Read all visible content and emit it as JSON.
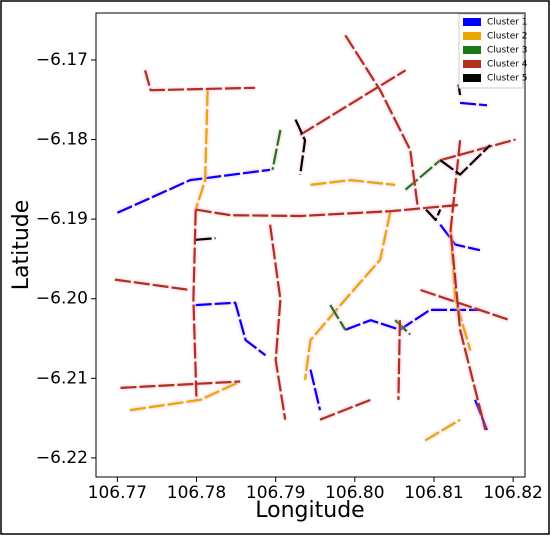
{
  "chart_data": {
    "type": "line",
    "xlabel": "Longitude",
    "ylabel": "Latitude",
    "xlim": [
      106.7673,
      106.8215
    ],
    "ylim": [
      -6.2224,
      -6.1641
    ],
    "xticks": [
      106.77,
      106.78,
      106.79,
      {
        "value": 106.8,
        "label": "106.80"
      },
      106.81,
      106.82
    ],
    "yticks": [
      {
        "value": -6.17,
        "label": "−6.17"
      },
      {
        "value": -6.18,
        "label": "−6.18"
      },
      {
        "value": -6.19,
        "label": "−6.19"
      },
      {
        "value": -6.2,
        "label": "−6.20"
      },
      {
        "value": -6.21,
        "label": "−6.21"
      },
      {
        "value": -6.22,
        "label": "−6.22"
      }
    ],
    "legend": "upper right",
    "series": [
      {
        "name": "Cluster 1",
        "color": "#0000ff",
        "x": [
          106.77,
          106.7792,
          106.7893,
          null,
          106.7799,
          106.7849,
          106.7862,
          106.7887,
          null,
          106.7944,
          106.7956,
          null,
          106.7988,
          106.802,
          106.8057,
          106.8095,
          106.8158,
          null,
          106.8133,
          106.8167,
          null,
          106.8108,
          106.8127,
          106.8158,
          null,
          106.8152,
          106.8167
        ],
        "values": [
          -6.1892,
          -6.1851,
          -6.1838,
          null,
          -6.2008,
          -6.2005,
          -6.2052,
          -6.2071,
          null,
          -6.2089,
          -6.214,
          null,
          -6.2039,
          -6.2027,
          -6.2039,
          -6.2014,
          -6.2014,
          null,
          -6.1754,
          -6.1757,
          null,
          -6.1907,
          -6.1932,
          -6.1939,
          null,
          -6.2127,
          -6.2165
        ]
      },
      {
        "name": "Cluster 2",
        "color": "#e8a800",
        "x": [
          106.7814,
          106.7811,
          106.7799,
          null,
          106.7944,
          106.7994,
          106.8051,
          null,
          106.8045,
          106.8032,
          106.7988,
          106.7944,
          106.7937,
          null,
          106.8121,
          106.8127,
          106.8146,
          null,
          106.7716,
          106.7805,
          106.7855,
          null,
          106.8089,
          106.8133
        ],
        "values": [
          -6.1738,
          -6.1851,
          -6.1888,
          null,
          -6.1857,
          -6.1851,
          -6.1857,
          null,
          -6.189,
          -6.1951,
          -6.2001,
          -6.2052,
          -6.2102,
          null,
          -6.1914,
          -6.2001,
          -6.2065,
          null,
          -6.214,
          -6.2127,
          -6.2104,
          null,
          -6.2178,
          -6.2152
        ]
      },
      {
        "name": "Cluster 3",
        "color": "#1a7a1a",
        "x": [
          106.7906,
          106.7896,
          null,
          106.7969,
          106.7988,
          null,
          106.8051,
          106.807,
          null,
          106.8064,
          106.8108
        ],
        "values": [
          -6.1788,
          -6.1838,
          null,
          -6.2008,
          -6.2039,
          null,
          -6.2027,
          -6.2045,
          null,
          -6.1863,
          -6.1826
        ]
      },
      {
        "name": "Cluster 4",
        "color": "#b0301c",
        "x": [
          106.7799,
          106.7843,
          106.7931,
          106.8045,
          106.8133,
          null,
          106.7799,
          106.7796,
          106.78,
          null,
          106.7931,
          106.8064,
          null,
          106.7988,
          106.8032,
          106.807,
          106.808,
          null,
          106.7893,
          106.7906,
          106.79,
          106.7912,
          null,
          106.7704,
          106.7855,
          null,
          106.7697,
          106.7792,
          null,
          106.8108,
          106.8203,
          null,
          106.8083,
          106.8196,
          null,
          106.7956,
          106.802,
          null,
          106.8057,
          106.8055,
          null,
          106.7735,
          106.7742,
          106.7874,
          null,
          106.8133,
          106.8121,
          106.8133,
          106.8165
        ],
        "values": [
          -6.1888,
          -6.1895,
          -6.1896,
          -6.189,
          -6.1882,
          null,
          -6.1888,
          -6.2001,
          -6.2127,
          null,
          -6.1794,
          -6.1713,
          null,
          -6.1669,
          -6.1738,
          -6.1813,
          -6.1888,
          null,
          -6.1907,
          -6.2001,
          -6.2077,
          -6.2152,
          null,
          -6.2112,
          -6.2104,
          null,
          -6.1976,
          -6.1989,
          null,
          -6.1826,
          -6.18,
          null,
          -6.1989,
          -6.2027,
          null,
          -6.2152,
          -6.2127,
          null,
          -6.2027,
          -6.2127,
          null,
          -6.1713,
          -6.1738,
          -6.1735,
          null,
          -6.1801,
          -6.1914,
          -6.2039,
          -6.2165
        ]
      },
      {
        "name": "Cluster 5",
        "color": "#000000",
        "x": [
          106.7925,
          106.7937,
          106.7931,
          null,
          106.7799,
          106.7824,
          null,
          106.8108,
          106.8133,
          106.8171,
          null,
          106.809,
          106.8102,
          106.8108,
          null,
          106.8131,
          106.8133
        ],
        "values": [
          -6.1775,
          -6.1801,
          -6.1844,
          null,
          -6.1926,
          -6.1924,
          null,
          -6.1826,
          -6.1844,
          -6.1807,
          null,
          -6.1888,
          -6.1901,
          -6.1888,
          null,
          -6.1731,
          -6.1744
        ]
      }
    ]
  }
}
